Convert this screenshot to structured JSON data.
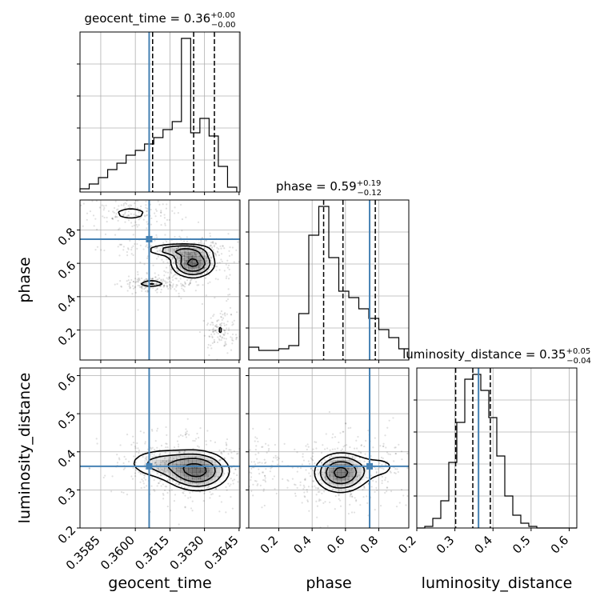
{
  "chart_data": {
    "type": "corner",
    "parameters": [
      "geocent_time",
      "phase",
      "luminosity_distance"
    ],
    "axis_labels": [
      "geocent_time",
      "phase",
      "luminosity_distance"
    ],
    "titles": [
      {
        "name": "geocent_time",
        "value": "0.36",
        "plus": "+0.00",
        "minus": "−0.00"
      },
      {
        "name": "phase",
        "value": "0.59",
        "plus": "+0.19",
        "minus": "−0.12"
      },
      {
        "name": "luminosity_distance",
        "value": "0.35",
        "plus": "+0.05",
        "minus": "−0.04"
      }
    ],
    "ranges": [
      [
        0.3576,
        0.36454
      ],
      [
        0.02,
        0.98
      ],
      [
        0.2,
        0.62
      ]
    ],
    "ticks": {
      "geocent_time": {
        "values": [
          0.3585,
          0.36,
          0.3615,
          0.363,
          0.3645
        ],
        "labels": [
          "0.3585",
          "0.3600",
          "0.3615",
          "0.3630",
          "0.3645"
        ]
      },
      "phase": {
        "values": [
          0.2,
          0.4,
          0.6,
          0.8
        ],
        "labels": [
          "0.2",
          "0.4",
          "0.6",
          "0.8"
        ]
      },
      "luminosity_distance": {
        "values": [
          0.2,
          0.3,
          0.4,
          0.5,
          0.6
        ],
        "labels": [
          "0.2",
          "0.3",
          "0.4",
          "0.5",
          "0.6"
        ]
      }
    },
    "truths": [
      0.3606,
      0.745,
      0.362
    ],
    "truth_color": "#4682b4",
    "quantiles": [
      [
        0.36075,
        0.36253,
        0.36343
      ],
      [
        0.469,
        0.585,
        0.779
      ],
      [
        0.302,
        0.347,
        0.393
      ]
    ],
    "histograms": [
      {
        "bin_edges": [
          0.3576,
          0.358,
          0.3584,
          0.3588,
          0.3592,
          0.3596,
          0.36,
          0.3604,
          0.3608,
          0.3612,
          0.3616,
          0.362,
          0.3624,
          0.3628,
          0.3632,
          0.3636,
          0.364,
          0.3644
        ],
        "counts": [
          0.02,
          0.05,
          0.09,
          0.14,
          0.18,
          0.23,
          0.26,
          0.3,
          0.34,
          0.39,
          0.44,
          0.96,
          0.37,
          0.46,
          0.35,
          0.16,
          0.03
        ]
      },
      {
        "bin_edges": [
          0.02,
          0.08,
          0.14,
          0.2,
          0.26,
          0.32,
          0.38,
          0.44,
          0.5,
          0.56,
          0.62,
          0.68,
          0.74,
          0.8,
          0.86,
          0.92,
          0.98
        ],
        "counts": [
          0.08,
          0.06,
          0.06,
          0.07,
          0.09,
          0.29,
          0.78,
          0.96,
          0.64,
          0.43,
          0.39,
          0.32,
          0.26,
          0.19,
          0.14,
          0.07
        ]
      },
      {
        "bin_edges": [
          0.2,
          0.221,
          0.242,
          0.263,
          0.284,
          0.305,
          0.326,
          0.347,
          0.368,
          0.389,
          0.41,
          0.431,
          0.452,
          0.473,
          0.494,
          0.515,
          0.536,
          0.557,
          0.578,
          0.599,
          0.62
        ],
        "counts": [
          0.0,
          0.01,
          0.06,
          0.17,
          0.41,
          0.66,
          0.93,
          0.96,
          0.86,
          0.69,
          0.45,
          0.2,
          0.08,
          0.03,
          0.01,
          0.0,
          0.0,
          0.0,
          0.0,
          0.0
        ]
      }
    ],
    "contour_levels": [
      0.5,
      0.9,
      1.4,
      2.0
    ],
    "density_components": [
      {
        "pair": [
          1,
          0
        ],
        "peaks": [
          {
            "mx": 0.3625,
            "my": 0.6,
            "sx": 0.00055,
            "sy": 0.05,
            "w": 1.0
          },
          {
            "mx": 0.3618,
            "my": 0.68,
            "sx": 0.0009,
            "sy": 0.025,
            "w": 0.55
          },
          {
            "mx": 0.3607,
            "my": 0.48,
            "sx": 0.0004,
            "sy": 0.015,
            "w": 0.45
          },
          {
            "mx": 0.3598,
            "my": 0.9,
            "sx": 0.0006,
            "sy": 0.03,
            "w": 0.35
          },
          {
            "mx": 0.3637,
            "my": 0.2,
            "sx": 0.00025,
            "sy": 0.04,
            "w": 0.25
          }
        ]
      },
      {
        "pair": [
          2,
          0
        ],
        "peaks": [
          {
            "mx": 0.3627,
            "my": 0.35,
            "sx": 0.0008,
            "sy": 0.03,
            "w": 1.0
          },
          {
            "mx": 0.361,
            "my": 0.37,
            "sx": 0.0009,
            "sy": 0.025,
            "w": 0.45
          }
        ]
      },
      {
        "pair": [
          2,
          1
        ],
        "peaks": [
          {
            "mx": 0.57,
            "my": 0.345,
            "sx": 0.09,
            "sy": 0.03,
            "w": 1.0
          },
          {
            "mx": 0.82,
            "my": 0.36,
            "sx": 0.1,
            "sy": 0.03,
            "w": 0.25
          },
          {
            "mx": 0.08,
            "my": 0.36,
            "sx": 0.05,
            "sy": 0.03,
            "w": 0.15
          }
        ]
      }
    ],
    "grid": true
  }
}
